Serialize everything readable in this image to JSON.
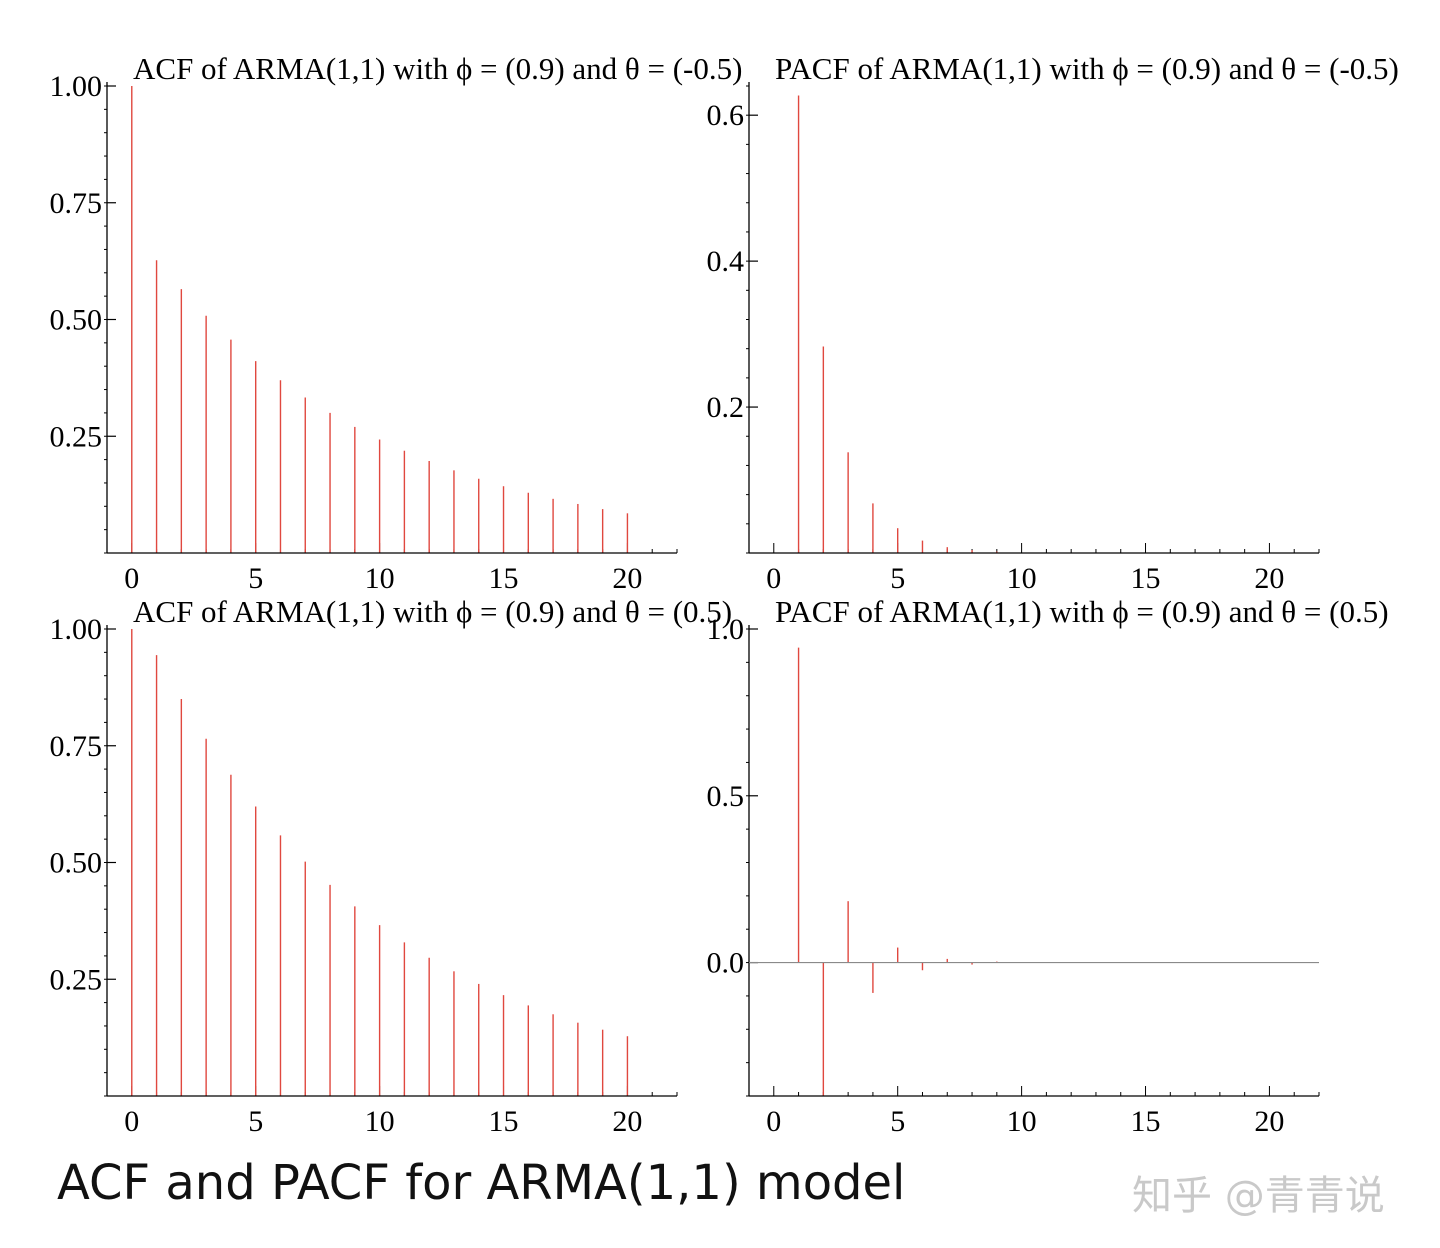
{
  "caption": "ACF and PACF for ARMA(1,1) model",
  "watermark": "知乎 @青青说",
  "colors": {
    "bar": "#e0483f",
    "axis": "#000000",
    "zero_line": "#8a8a8a"
  },
  "chart_data": [
    {
      "id": "acf-neg",
      "type": "bar",
      "style": "stem",
      "title": "ACF of ARMA(1,1) with ϕ = (0.9) and θ = (-0.5)",
      "xlabel": "",
      "ylabel": "",
      "xlim": [
        -1,
        22
      ],
      "ylim": [
        0,
        1.0
      ],
      "xticks": [
        0,
        5,
        10,
        15,
        20
      ],
      "yticks": [
        0.25,
        0.5,
        0.75,
        1.0
      ],
      "ytick_labels": [
        "0.25",
        "0.50",
        "0.75",
        "1.00"
      ],
      "zero_line": false,
      "x": [
        0,
        1,
        2,
        3,
        4,
        5,
        6,
        7,
        8,
        9,
        10,
        11,
        12,
        13,
        14,
        15,
        16,
        17,
        18,
        19,
        20
      ],
      "values": [
        1.0,
        0.627,
        0.565,
        0.508,
        0.457,
        0.411,
        0.37,
        0.333,
        0.3,
        0.27,
        0.243,
        0.219,
        0.197,
        0.177,
        0.159,
        0.143,
        0.129,
        0.116,
        0.105,
        0.094,
        0.085
      ]
    },
    {
      "id": "pacf-neg",
      "type": "bar",
      "style": "stem",
      "title": "PACF of ARMA(1,1) with ϕ = (0.9) and θ = (-0.5)",
      "xlabel": "",
      "ylabel": "",
      "xlim": [
        -1,
        22
      ],
      "ylim": [
        0,
        0.64
      ],
      "xticks": [
        0,
        5,
        10,
        15,
        20
      ],
      "yticks": [
        0.2,
        0.4,
        0.6
      ],
      "ytick_labels": [
        "0.2",
        "0.4",
        "0.6"
      ],
      "zero_line": false,
      "x": [
        1,
        2,
        3,
        4,
        5,
        6,
        7,
        8,
        9
      ],
      "values": [
        0.627,
        0.283,
        0.138,
        0.068,
        0.034,
        0.017,
        0.008,
        0.004,
        0.002
      ]
    },
    {
      "id": "acf-pos",
      "type": "bar",
      "style": "stem",
      "title": "ACF of ARMA(1,1) with ϕ = (0.9) and θ = (0.5)",
      "xlabel": "",
      "ylabel": "",
      "xlim": [
        -1,
        22
      ],
      "ylim": [
        0,
        1.0
      ],
      "xticks": [
        0,
        5,
        10,
        15,
        20
      ],
      "yticks": [
        0.25,
        0.5,
        0.75,
        1.0
      ],
      "ytick_labels": [
        "0.25",
        "0.50",
        "0.75",
        "1.00"
      ],
      "zero_line": false,
      "x": [
        0,
        1,
        2,
        3,
        4,
        5,
        6,
        7,
        8,
        9,
        10,
        11,
        12,
        13,
        14,
        15,
        16,
        17,
        18,
        19,
        20
      ],
      "values": [
        1.0,
        0.944,
        0.85,
        0.765,
        0.688,
        0.62,
        0.558,
        0.502,
        0.452,
        0.406,
        0.366,
        0.329,
        0.296,
        0.267,
        0.24,
        0.216,
        0.194,
        0.175,
        0.157,
        0.142,
        0.128
      ]
    },
    {
      "id": "pacf-pos",
      "type": "bar",
      "style": "stem",
      "title": "PACF of ARMA(1,1) with ϕ = (0.9) and θ = (0.5)",
      "xlabel": "",
      "ylabel": "",
      "xlim": [
        -1,
        22
      ],
      "ylim": [
        -0.4,
        1.0
      ],
      "xticks": [
        0,
        5,
        10,
        15,
        20
      ],
      "yticks": [
        0.0,
        0.5,
        1.0
      ],
      "ytick_labels": [
        "0.0",
        "0.5",
        "1.0"
      ],
      "zero_line": true,
      "x": [
        1,
        2,
        3,
        4,
        5,
        6,
        7,
        8,
        9
      ],
      "values": [
        0.944,
        -0.4,
        0.184,
        -0.091,
        0.045,
        -0.023,
        0.011,
        -0.006,
        0.003
      ]
    }
  ]
}
